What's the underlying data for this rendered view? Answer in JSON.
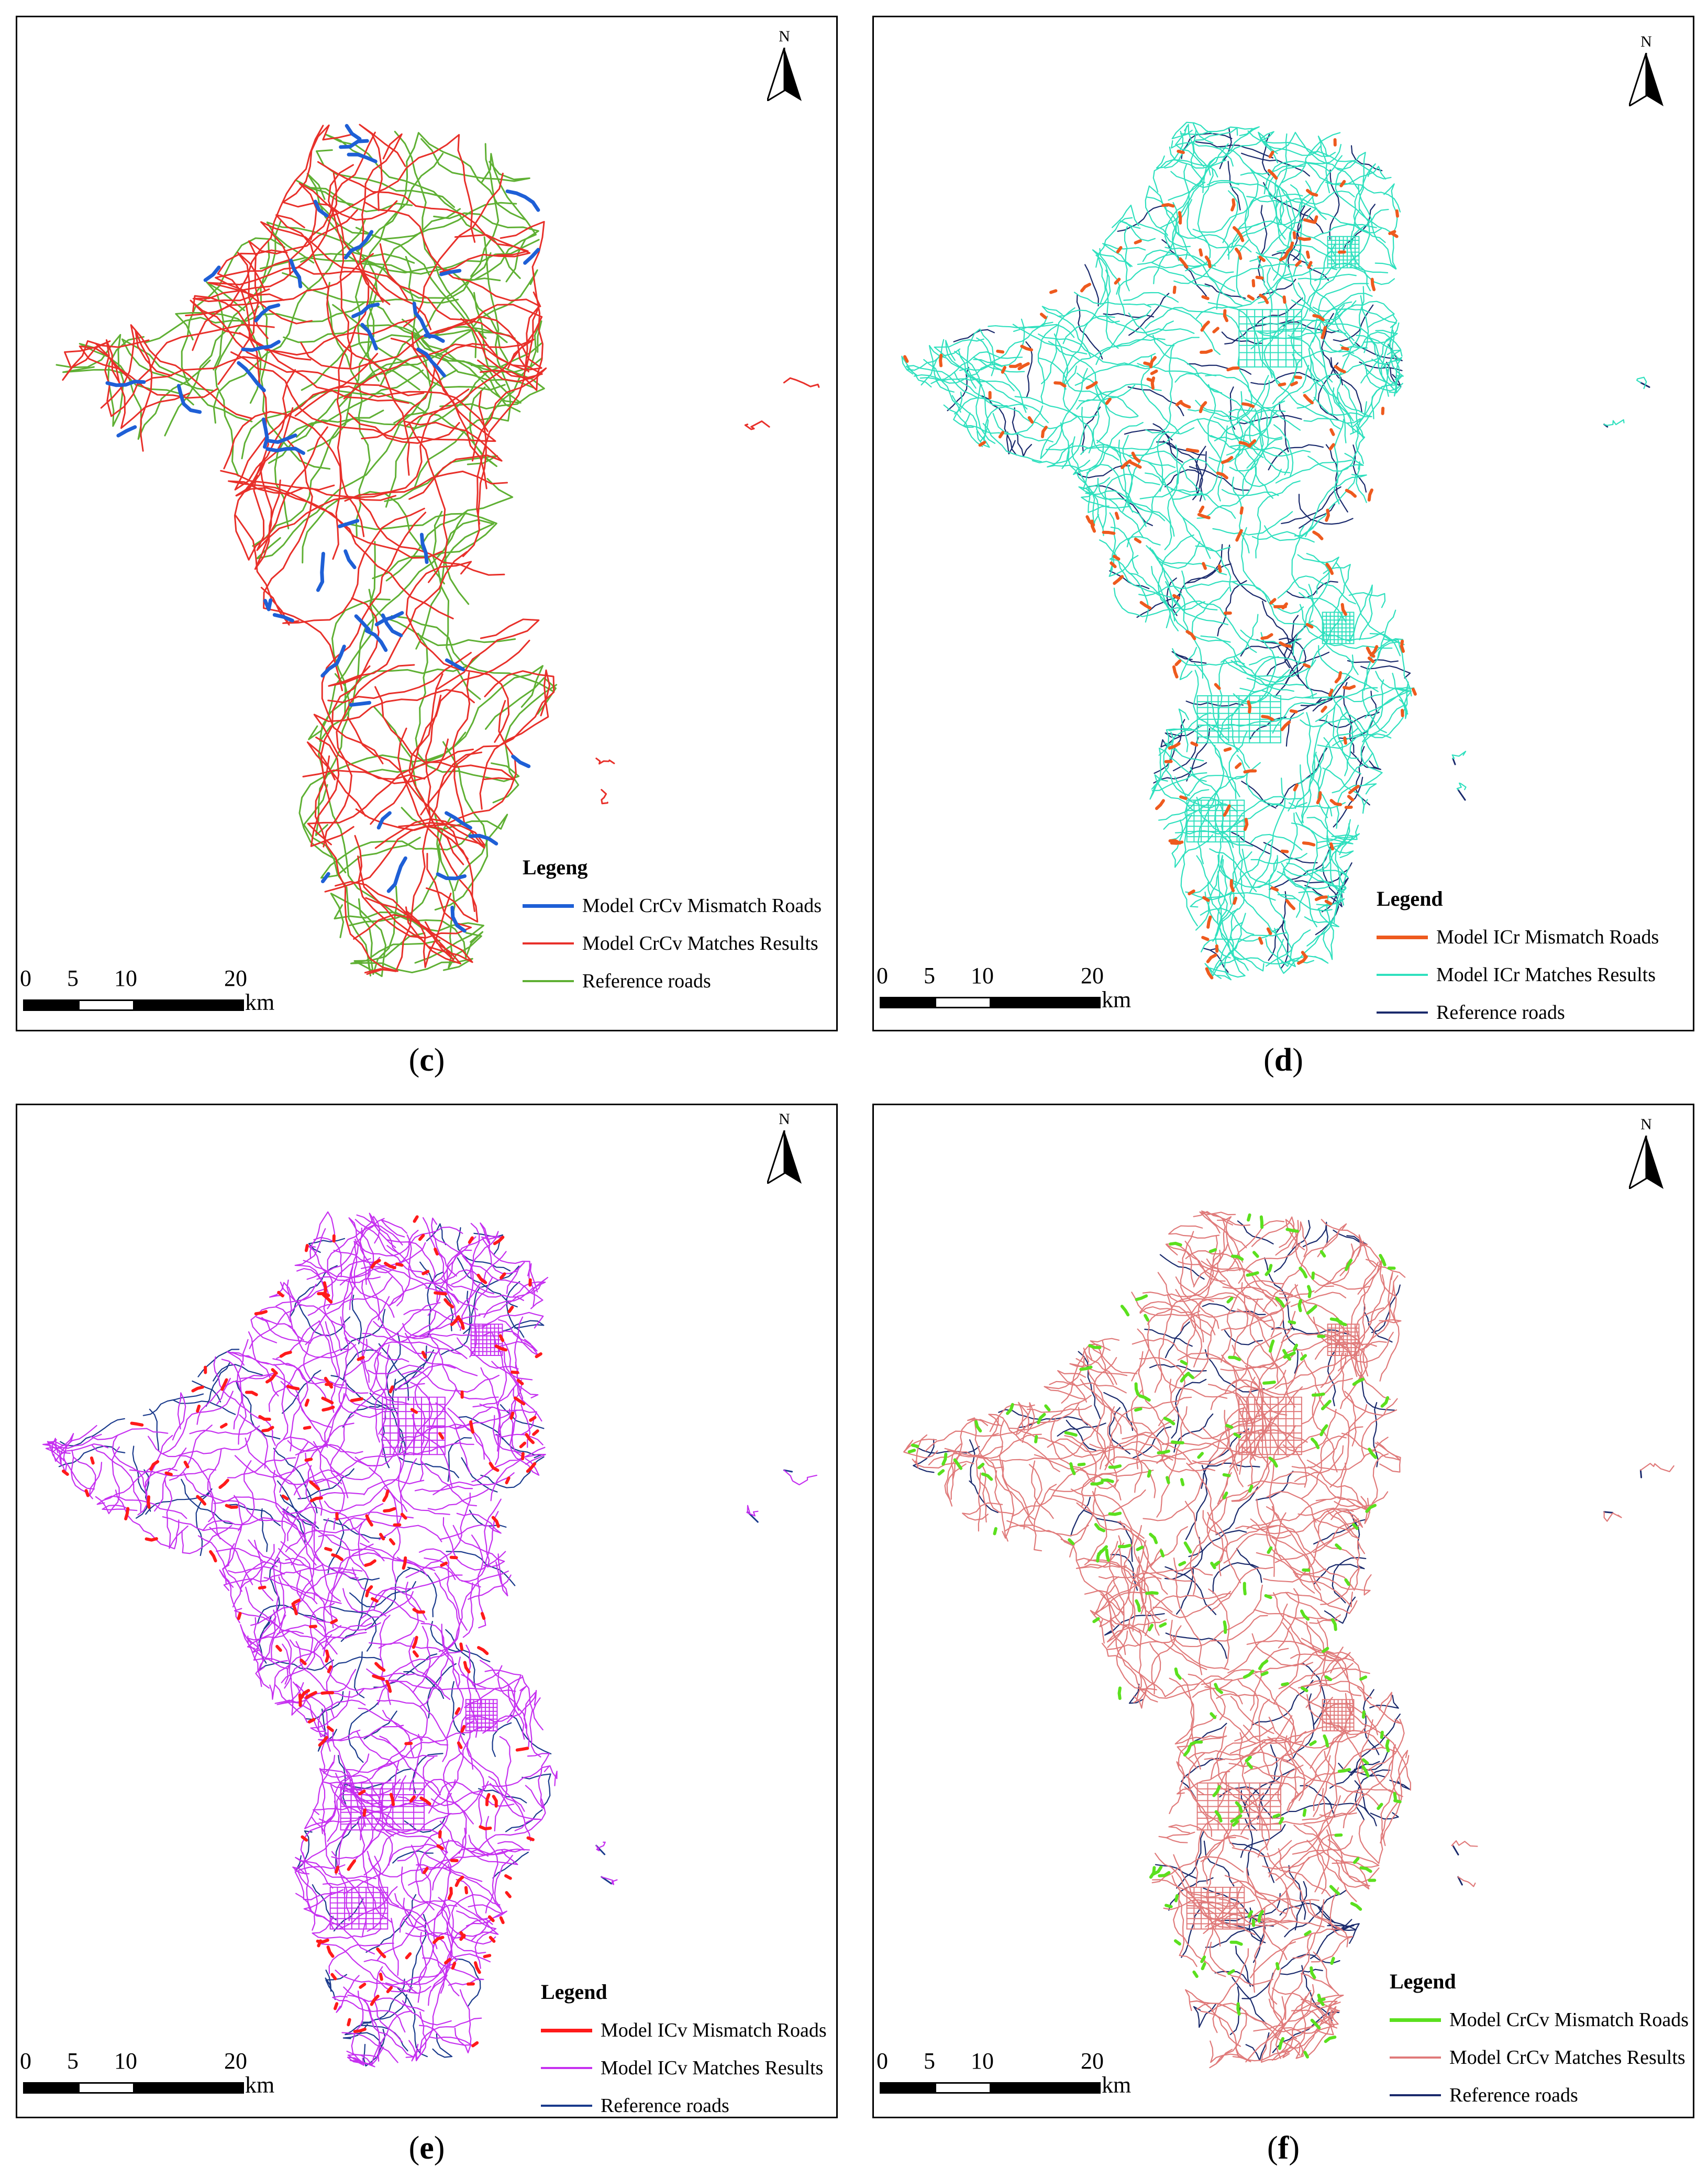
{
  "north_label": "N",
  "scale": {
    "ticks": [
      "0",
      "5",
      "10",
      "20"
    ],
    "unit": "km"
  },
  "panels": [
    {
      "id": "c",
      "caption_open": "(",
      "caption_letter": "c",
      "caption_close": ")",
      "legend_title": "Legeng",
      "legend": [
        {
          "label": "Model CrCv Mismatch Roads",
          "color": "#1e5fd6"
        },
        {
          "label": "Model CrCv Matches Results",
          "color": "#e8302a"
        },
        {
          "label": "Reference roads",
          "color": "#5fb034"
        }
      ],
      "colors": {
        "mismatch": "#1e5fd6",
        "match": "#e8302a",
        "reference": "#5fb034"
      }
    },
    {
      "id": "d",
      "caption_open": "(",
      "caption_letter": "d",
      "caption_close": ")",
      "legend_title": "Legend",
      "legend": [
        {
          "label": "Model ICr Mismatch Roads",
          "color": "#ee5a1e"
        },
        {
          "label": "Model ICr Matches Results",
          "color": "#2fe0be"
        },
        {
          "label": "Reference roads",
          "color": "#1a2a6c"
        }
      ],
      "colors": {
        "mismatch": "#ee5a1e",
        "match": "#2fe0be",
        "reference": "#1a2a6c"
      }
    },
    {
      "id": "e",
      "caption_open": "(",
      "caption_letter": "e",
      "caption_close": ")",
      "legend_title": "Legend",
      "legend": [
        {
          "label": "Model ICv Mismatch Roads",
          "color": "#ff1a1a"
        },
        {
          "label": "Model ICv Matches Results",
          "color": "#c630f0"
        },
        {
          "label": "Reference roads",
          "color": "#1a3a8c"
        }
      ],
      "colors": {
        "mismatch": "#ff1a1a",
        "match": "#c630f0",
        "reference": "#1a3a8c"
      }
    },
    {
      "id": "f",
      "caption_open": "(",
      "caption_letter": "f",
      "caption_close": ")",
      "legend_title": "Legend",
      "legend": [
        {
          "label": "Model CrCv Mismatch Roads",
          "color": "#5be01e"
        },
        {
          "label": "Model CrCv Matches Results",
          "color": "#e07a7a"
        },
        {
          "label": "Reference roads",
          "color": "#1a2a6c"
        }
      ],
      "colors": {
        "mismatch": "#5be01e",
        "match": "#e07a7a",
        "reference": "#1a2a6c"
      }
    }
  ]
}
